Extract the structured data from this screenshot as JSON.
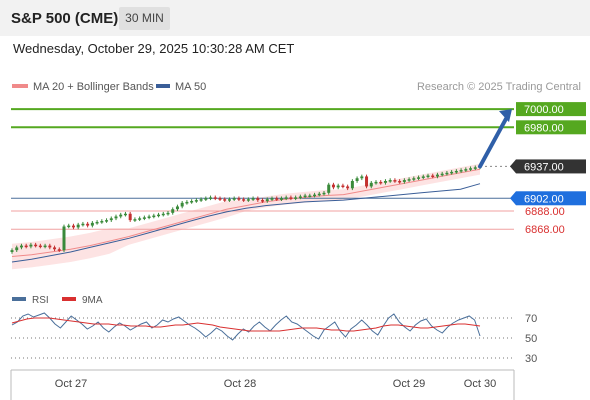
{
  "header": {
    "title": "S&P 500 (CME)",
    "timeframe": "30 MIN",
    "datetime": "Wednesday, October 29, 2025 10:30:28 AM CET"
  },
  "legend": {
    "ma20": {
      "label": "MA 20 + Bollinger Bands",
      "color": "#f08a8a"
    },
    "ma50": {
      "label": "MA 50",
      "color": "#3a5e98"
    },
    "attribution": "Research © 2025 Trading Central"
  },
  "colors": {
    "up": "#3a8a3a",
    "down": "#c43030",
    "target": "#55a820",
    "support_line": "#4a6f9a",
    "band_fill": "#fde3e3"
  },
  "chart_data": [
    {
      "type": "candlestick",
      "title": "S&P 500 (CME)",
      "timeframe": "30 MIN",
      "x_labels": [
        "Oct 27",
        "Oct 28",
        "Oct 29",
        "Oct 30"
      ],
      "y_range": [
        6810,
        7010
      ],
      "price_levels": [
        {
          "value": 7000.0,
          "label": "7000.00",
          "kind": "target"
        },
        {
          "value": 6980.0,
          "label": "6980.00",
          "kind": "target"
        },
        {
          "value": 6937.0,
          "label": "6937.00",
          "kind": "last"
        },
        {
          "value": 6902.0,
          "label": "6902.00",
          "kind": "pivot"
        },
        {
          "value": 6888.0,
          "label": "6888.00",
          "kind": "support"
        },
        {
          "value": 6868.0,
          "label": "6868.00",
          "kind": "support"
        }
      ],
      "close_series": [
        6845,
        6848,
        6850,
        6849,
        6851,
        6850,
        6849,
        6850,
        6848,
        6846,
        6845,
        6871,
        6872,
        6870,
        6873,
        6874,
        6872,
        6875,
        6876,
        6877,
        6878,
        6880,
        6882,
        6884,
        6885,
        6878,
        6879,
        6880,
        6881,
        6882,
        6883,
        6884,
        6885,
        6886,
        6890,
        6893,
        6897,
        6898,
        6899,
        6900,
        6901,
        6902,
        6903,
        6902,
        6901,
        6900,
        6901,
        6902,
        6901,
        6900,
        6901,
        6902,
        6900,
        6899,
        6901,
        6902,
        6901,
        6902,
        6903,
        6902,
        6903,
        6904,
        6905,
        6905,
        6906,
        6907,
        6908,
        6917,
        6914,
        6916,
        6915,
        6913,
        6921,
        6924,
        6926,
        6915,
        6919,
        6920,
        6919,
        6921,
        6922,
        6921,
        6920,
        6922,
        6923,
        6924,
        6925,
        6926,
        6927,
        6926,
        6928,
        6929,
        6930,
        6931,
        6932,
        6933,
        6934,
        6935,
        6936,
        6937
      ],
      "ma20": [
        6838,
        6840,
        6843,
        6846,
        6850,
        6855,
        6860,
        6866,
        6872,
        6878,
        6884,
        6890,
        6894,
        6898,
        6901,
        6903,
        6905,
        6906,
        6910,
        6914,
        6918,
        6922,
        6926,
        6930,
        6934
      ],
      "ma50": [
        6832,
        6835,
        6839,
        6843,
        6848,
        6853,
        6858,
        6864,
        6870,
        6876,
        6882,
        6887,
        6891,
        6894,
        6896,
        6898,
        6899,
        6900,
        6902,
        6904,
        6906,
        6908,
        6910,
        6912,
        6918
      ],
      "forecast_target": 7000.0
    },
    {
      "type": "line",
      "series": [
        {
          "name": "RSI",
          "color": "#4a6f9a"
        },
        {
          "name": "9MA",
          "color": "#d93030"
        }
      ],
      "y_ticks": [
        70,
        50,
        30
      ],
      "rsi": [
        63,
        66,
        72,
        74,
        71,
        73,
        75,
        70,
        64,
        60,
        66,
        72,
        68,
        64,
        59,
        62,
        66,
        60,
        56,
        61,
        65,
        62,
        58,
        61,
        64,
        66,
        60,
        63,
        68,
        66,
        69,
        71,
        67,
        63,
        60,
        56,
        51,
        55,
        60,
        57,
        52,
        48,
        54,
        59,
        56,
        62,
        66,
        61,
        57,
        63,
        68,
        72,
        66,
        64,
        60,
        56,
        52,
        49,
        58,
        62,
        66,
        57,
        51,
        59,
        63,
        68,
        63,
        57,
        53,
        62,
        70,
        74,
        66,
        61,
        57,
        63,
        67,
        69,
        62,
        58,
        55,
        61,
        65,
        68,
        70,
        72,
        68,
        52
      ],
      "ma9": [
        65,
        67,
        69,
        70,
        70,
        70,
        69,
        68,
        67,
        66,
        65,
        64,
        64,
        64,
        63,
        63,
        62,
        62,
        62,
        61,
        61,
        62,
        63,
        63,
        64,
        65,
        64,
        63,
        61,
        60,
        59,
        58,
        57,
        57,
        57,
        57,
        57,
        58,
        59,
        60,
        60,
        60,
        59,
        58,
        58,
        57,
        57,
        58,
        59,
        60,
        62,
        63,
        63,
        62,
        61,
        60,
        60,
        61,
        62,
        63,
        64,
        64,
        63,
        62
      ]
    }
  ]
}
